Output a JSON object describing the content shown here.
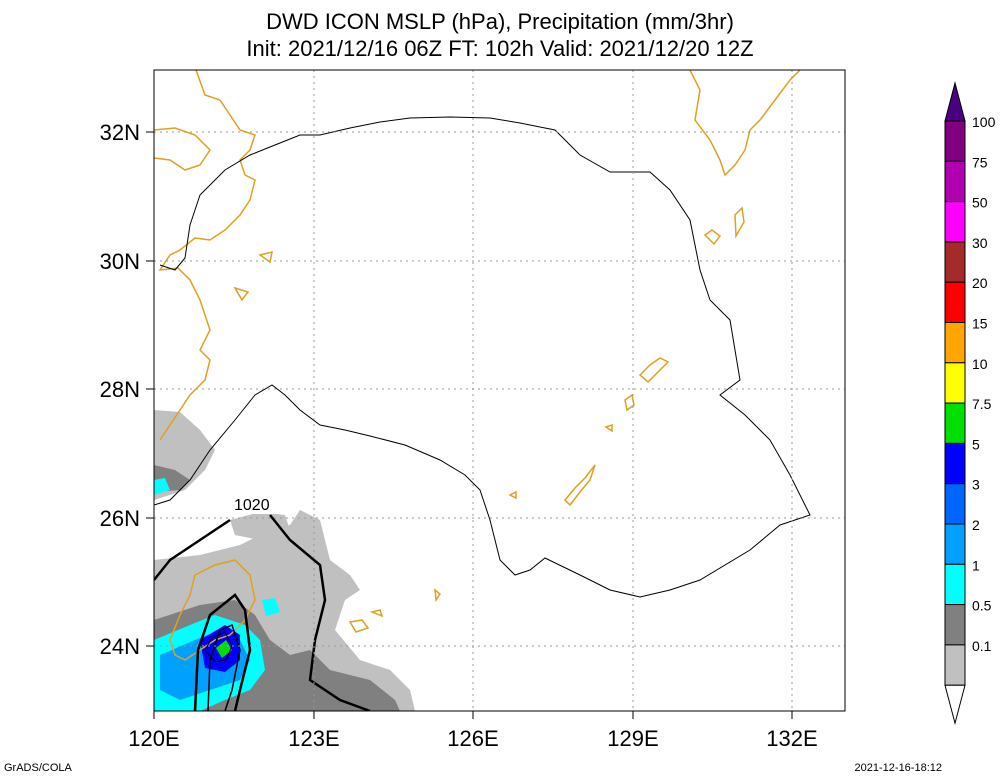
{
  "title_line1": "DWD ICON MSLP (hPa), Precipitation (mm/3hr)",
  "title_line2": "Init: 2021/12/16 06Z  FT: 102h  Valid: 2021/12/20 12Z",
  "footer_left": "GrADS/COLA",
  "footer_right": "2021-12-16-18:12",
  "map": {
    "lon_ticks": [
      "120E",
      "123E",
      "126E",
      "129E",
      "132E"
    ],
    "lat_ticks": [
      "24N",
      "26N",
      "28N",
      "30N",
      "32N"
    ],
    "isobar_label": "1020",
    "colors": {
      "coast": "#e0a020",
      "isobar": "#000000",
      "grid": "#999999"
    }
  },
  "legend": {
    "labels": [
      "100",
      "75",
      "50",
      "30",
      "20",
      "15",
      "10",
      "7.5",
      "5",
      "3",
      "2",
      "1",
      "0.5",
      "0.1"
    ],
    "colors": [
      "#800080",
      "#b000b0",
      "#ff00ff",
      "#a52a2a",
      "#ff0000",
      "#ffa500",
      "#ffff00",
      "#00e000",
      "#0000ff",
      "#0066ff",
      "#00a0ff",
      "#00ffff",
      "#808080",
      "#c0c0c0",
      "#ffffff"
    ],
    "top_color": "#4b0082"
  }
}
